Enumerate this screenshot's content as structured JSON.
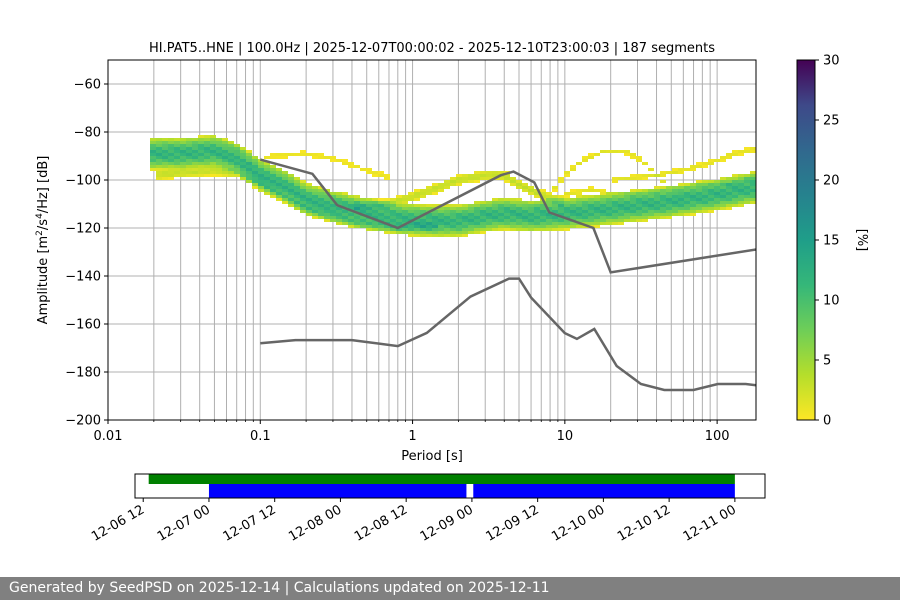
{
  "chart_data": [
    {
      "type": "heatmap",
      "title": "HI.PAT5..HNE | 100.0Hz | 2025-12-07T00:00:02 - 2025-12-10T23:00:03 | 187 segments",
      "xlabel": "Period [s]",
      "ylabel_parts": [
        "Amplitude [m",
        "2",
        "/s",
        "4",
        "/Hz] [dB]"
      ],
      "xscale": "log",
      "xlim": [
        0.01,
        180
      ],
      "ylim": [
        -200,
        -50
      ],
      "x_ticks": [
        {
          "value": 0.01,
          "label": "0.01"
        },
        {
          "value": 0.1,
          "label": "0.1"
        },
        {
          "value": 1,
          "label": "1"
        },
        {
          "value": 10,
          "label": "10"
        },
        {
          "value": 100,
          "label": "100"
        }
      ],
      "y_ticks": [
        {
          "value": -60,
          "label": "−60"
        },
        {
          "value": -80,
          "label": "−80"
        },
        {
          "value": -100,
          "label": "−100"
        },
        {
          "value": -120,
          "label": "−120"
        },
        {
          "value": -140,
          "label": "−140"
        },
        {
          "value": -160,
          "label": "−160"
        },
        {
          "value": -180,
          "label": "−180"
        },
        {
          "value": -200,
          "label": "−200"
        }
      ],
      "colorbar": {
        "label": "[%]",
        "min": 0,
        "max": 30,
        "colormap": "viridis_r",
        "ticks": [
          {
            "value": 0,
            "label": "0"
          },
          {
            "value": 5,
            "label": "5"
          },
          {
            "value": 10,
            "label": "10"
          },
          {
            "value": 15,
            "label": "15"
          },
          {
            "value": 20,
            "label": "20"
          },
          {
            "value": 25,
            "label": "25"
          },
          {
            "value": 30,
            "label": "30"
          }
        ]
      },
      "grid": true,
      "psd_bands": [
        {
          "points": [
            [
              0.019,
              -89
            ],
            [
              0.03,
              -89
            ],
            [
              0.05,
              -88
            ],
            [
              0.07,
              -91
            ],
            [
              0.1,
              -98
            ],
            [
              0.15,
              -103
            ],
            [
              0.2,
              -108
            ],
            [
              0.3,
              -111
            ],
            [
              0.5,
              -114
            ],
            [
              0.8,
              -116
            ],
            [
              1.2,
              -117
            ],
            [
              2,
              -117
            ],
            [
              3,
              -115
            ],
            [
              4,
              -114
            ],
            [
              6,
              -115
            ],
            [
              10,
              -114
            ],
            [
              20,
              -112
            ],
            [
              50,
              -109
            ],
            [
              100,
              -106
            ],
            [
              180,
              -103
            ]
          ],
          "low": 6,
          "high": 7,
          "pct": 12
        },
        {
          "points": [
            [
              0.4,
              -111
            ],
            [
              0.7,
              -110
            ],
            [
              1,
              -107
            ],
            [
              1.5,
              -103
            ],
            [
              2,
              -100
            ],
            [
              3,
              -98
            ],
            [
              4,
              -98
            ],
            [
              5,
              -102
            ],
            [
              7,
              -106
            ],
            [
              10,
              -110
            ]
          ],
          "low": 2,
          "high": 2,
          "pct": 3
        },
        {
          "points": [
            [
              8,
              -106
            ],
            [
              10,
              -98
            ],
            [
              13,
              -92
            ],
            [
              18,
              -88
            ],
            [
              25,
              -88
            ],
            [
              32,
              -92
            ],
            [
              40,
              -98
            ],
            [
              50,
              -104
            ],
            [
              60,
              -108
            ]
          ],
          "low": 1,
          "high": 1,
          "pct": 1.5
        },
        {
          "points": [
            [
              6,
              -112
            ],
            [
              10,
              -106
            ],
            [
              15,
              -104
            ],
            [
              20,
              -106
            ],
            [
              30,
              -106
            ],
            [
              50,
              -104
            ],
            [
              80,
              -102
            ],
            [
              120,
              -102
            ],
            [
              180,
              -99
            ]
          ],
          "low": 1,
          "high": 1,
          "pct": 1.5
        },
        {
          "points": [
            [
              20,
              -100
            ],
            [
              40,
              -98
            ],
            [
              60,
              -96
            ],
            [
              100,
              -92
            ],
            [
              130,
              -89
            ],
            [
              180,
              -87
            ]
          ],
          "low": 1,
          "high": 1,
          "pct": 1.5
        },
        {
          "points": [
            [
              0.02,
              -98
            ],
            [
              0.03,
              -97
            ],
            [
              0.05,
              -96
            ],
            [
              0.07,
              -97
            ],
            [
              0.1,
              -101
            ],
            [
              0.15,
              -108
            ],
            [
              0.2,
              -112
            ],
            [
              0.4,
              -118
            ],
            [
              0.8,
              -120
            ],
            [
              1.5,
              -119
            ]
          ],
          "low": 2,
          "high": 2,
          "pct": 3
        },
        {
          "points": [
            [
              0.08,
              -94
            ],
            [
              0.12,
              -90
            ],
            [
              0.2,
              -89
            ],
            [
              0.3,
              -91
            ],
            [
              0.5,
              -96
            ],
            [
              0.7,
              -99
            ]
          ],
          "low": 1,
          "high": 1,
          "pct": 1
        }
      ],
      "nhnm": [
        [
          0.1,
          -91.5
        ],
        [
          0.22,
          -97.4
        ],
        [
          0.32,
          -110.5
        ],
        [
          0.8,
          -120
        ],
        [
          3.8,
          -98
        ],
        [
          4.6,
          -96.5
        ],
        [
          6.3,
          -101
        ],
        [
          7.9,
          -113.5
        ],
        [
          15.4,
          -120
        ],
        [
          20,
          -138.5
        ],
        [
          354.8,
          -126
        ]
      ],
      "nlnm": [
        [
          0.1,
          -168
        ],
        [
          0.17,
          -166.7
        ],
        [
          0.4,
          -166.7
        ],
        [
          0.8,
          -169.2
        ],
        [
          1.24,
          -163.7
        ],
        [
          2.4,
          -148.6
        ],
        [
          4.3,
          -141.1
        ],
        [
          5,
          -141.1
        ],
        [
          6,
          -149
        ],
        [
          10,
          -163.8
        ],
        [
          12,
          -166.2
        ],
        [
          15.6,
          -162.1
        ],
        [
          21.9,
          -177.5
        ],
        [
          31.6,
          -185
        ],
        [
          45,
          -187.5
        ],
        [
          70,
          -187.5
        ],
        [
          101,
          -185
        ],
        [
          154,
          -185
        ],
        [
          328,
          -187.5
        ]
      ]
    },
    {
      "type": "timeline",
      "x_ticks": [
        {
          "value": "2025-12-06T12:00",
          "label": "12-06 12"
        },
        {
          "value": "2025-12-07T00:00",
          "label": "12-07 00"
        },
        {
          "value": "2025-12-07T12:00",
          "label": "12-07 12"
        },
        {
          "value": "2025-12-08T00:00",
          "label": "12-08 00"
        },
        {
          "value": "2025-12-08T12:00",
          "label": "12-08 12"
        },
        {
          "value": "2025-12-09T00:00",
          "label": "12-09 00"
        },
        {
          "value": "2025-12-09T12:00",
          "label": "12-09 12"
        },
        {
          "value": "2025-12-10T00:00",
          "label": "12-10 00"
        },
        {
          "value": "2025-12-10T12:00",
          "label": "12-10 12"
        },
        {
          "value": "2025-12-11T00:00",
          "label": "12-11 00"
        }
      ],
      "xlim": [
        "2025-12-06T10:30",
        "2025-12-11T05:30"
      ],
      "data_coverage": [
        {
          "start": "2025-12-06T13:00",
          "end": "2025-12-11T00:00",
          "color": "#008000"
        }
      ],
      "psd_coverage": [
        {
          "start": "2025-12-07T00:00",
          "end": "2025-12-08T23:00",
          "color": "#0000ff"
        },
        {
          "start": "2025-12-09T00:15",
          "end": "2025-12-11T00:00",
          "color": "#0000ff"
        }
      ]
    }
  ],
  "footer": {
    "text": "Generated by SeedPSD on 2025-12-14 | Calculations updated on 2025-12-11"
  }
}
